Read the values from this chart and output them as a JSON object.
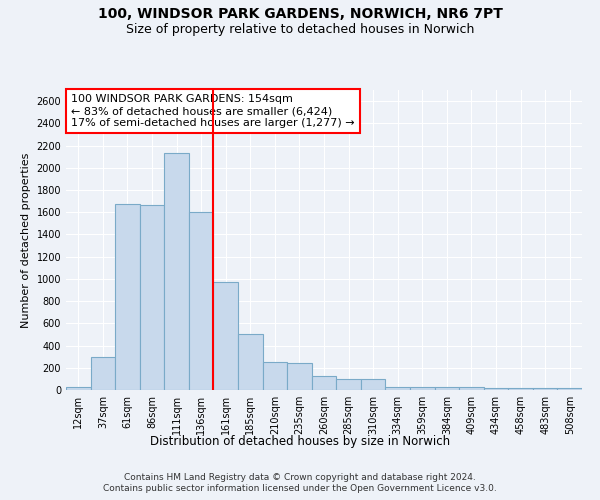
{
  "title": "100, WINDSOR PARK GARDENS, NORWICH, NR6 7PT",
  "subtitle": "Size of property relative to detached houses in Norwich",
  "xlabel": "Distribution of detached houses by size in Norwich",
  "ylabel": "Number of detached properties",
  "bar_color": "#c8d9ec",
  "bar_edge_color": "#7aaac8",
  "background_color": "#eef2f8",
  "grid_color": "#ffffff",
  "categories": [
    "12sqm",
    "37sqm",
    "61sqm",
    "86sqm",
    "111sqm",
    "136sqm",
    "161sqm",
    "185sqm",
    "210sqm",
    "235sqm",
    "260sqm",
    "285sqm",
    "310sqm",
    "334sqm",
    "359sqm",
    "384sqm",
    "409sqm",
    "434sqm",
    "458sqm",
    "483sqm",
    "508sqm"
  ],
  "values": [
    25,
    295,
    1670,
    1665,
    2130,
    1600,
    970,
    500,
    255,
    245,
    125,
    100,
    95,
    30,
    30,
    25,
    25,
    22,
    22,
    22,
    22
  ],
  "red_line_x": 6,
  "annotation_text": "100 WINDSOR PARK GARDENS: 154sqm\n← 83% of detached houses are smaller (6,424)\n17% of semi-detached houses are larger (1,277) →",
  "ylim": [
    0,
    2700
  ],
  "yticks": [
    0,
    200,
    400,
    600,
    800,
    1000,
    1200,
    1400,
    1600,
    1800,
    2000,
    2200,
    2400,
    2600
  ],
  "footnote1": "Contains HM Land Registry data © Crown copyright and database right 2024.",
  "footnote2": "Contains public sector information licensed under the Open Government Licence v3.0.",
  "title_fontsize": 10,
  "subtitle_fontsize": 9,
  "tick_fontsize": 7,
  "ylabel_fontsize": 8,
  "xlabel_fontsize": 8.5,
  "annotation_fontsize": 8
}
